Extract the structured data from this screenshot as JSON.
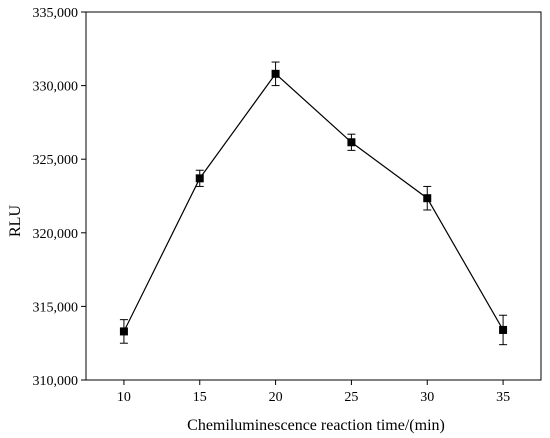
{
  "chart_data": {
    "type": "line",
    "title": "",
    "xlabel": "Chemiluminescence reaction time/(min)",
    "ylabel": "RLU",
    "xlim": [
      7.5,
      37.5
    ],
    "ylim": [
      310000,
      335000
    ],
    "x_ticks": [
      10,
      15,
      20,
      25,
      30,
      35
    ],
    "x_tick_labels": [
      "10",
      "15",
      "20",
      "25",
      "30",
      "35"
    ],
    "y_ticks": [
      310000,
      315000,
      320000,
      325000,
      330000,
      335000
    ],
    "y_tick_labels": [
      "310,000",
      "315,000",
      "320,000",
      "325,000",
      "330,000",
      "335,000"
    ],
    "grid": false,
    "marker": "square",
    "series": [
      {
        "x": [
          10,
          15,
          20,
          25,
          30,
          35
        ],
        "y": [
          313300,
          323700,
          330800,
          326150,
          322350,
          313400
        ],
        "error": [
          800,
          550,
          800,
          550,
          800,
          1000
        ]
      }
    ]
  }
}
